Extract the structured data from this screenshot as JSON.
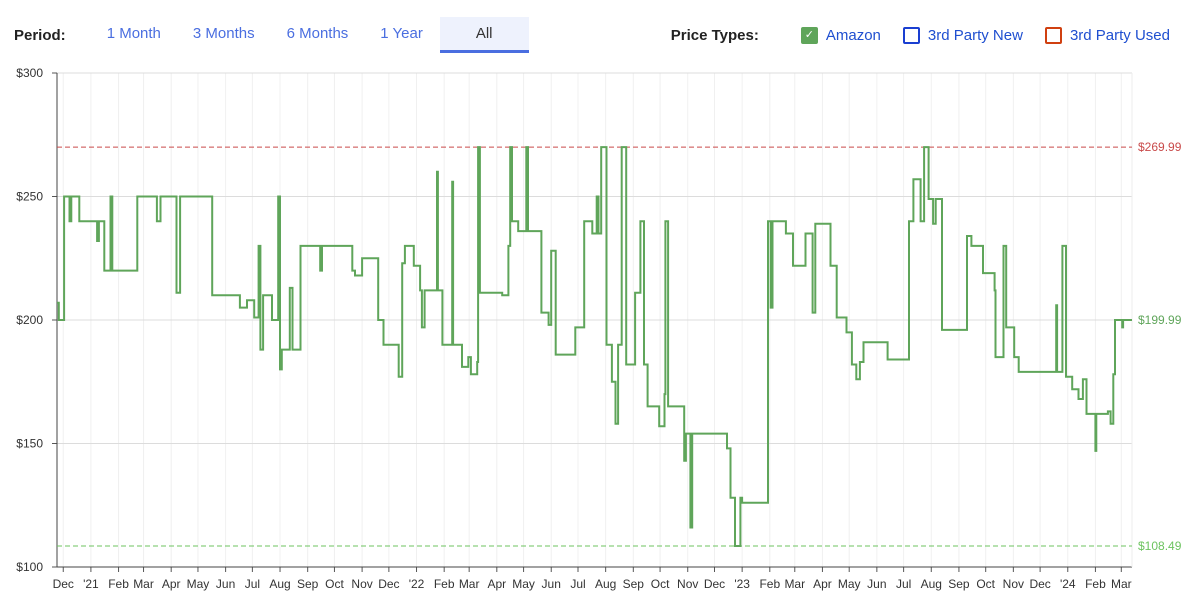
{
  "header": {
    "period_label": "Period:",
    "periods": [
      {
        "label": "1 Month",
        "active": false
      },
      {
        "label": "3 Months",
        "active": false
      },
      {
        "label": "6 Months",
        "active": false
      },
      {
        "label": "1 Year",
        "active": false
      },
      {
        "label": "All",
        "active": true
      }
    ],
    "price_types_label": "Price Types:",
    "price_types": [
      {
        "label": "Amazon",
        "checked": true,
        "color": "#5fa55a"
      },
      {
        "label": "3rd Party New",
        "checked": false,
        "color": "#1a3fd1"
      },
      {
        "label": "3rd Party Used",
        "checked": false,
        "color": "#d04010"
      }
    ]
  },
  "chart_data": {
    "type": "line",
    "step": true,
    "xrange": [
      "2020-11-24",
      "2024-03-13"
    ],
    "ylim": [
      100,
      300
    ],
    "y_ticks": [
      {
        "value": 300,
        "label": "$300"
      },
      {
        "value": 250,
        "label": "$250"
      },
      {
        "value": 200,
        "label": "$200"
      },
      {
        "value": 150,
        "label": "$150"
      },
      {
        "value": 100,
        "label": "$100"
      }
    ],
    "x_ticks": [
      {
        "date": "2020-12-01",
        "label": "Dec"
      },
      {
        "date": "2021-01-01",
        "label": "'21"
      },
      {
        "date": "2021-02-01",
        "label": "Feb"
      },
      {
        "date": "2021-03-01",
        "label": "Mar"
      },
      {
        "date": "2021-04-01",
        "label": "Apr"
      },
      {
        "date": "2021-05-01",
        "label": "May"
      },
      {
        "date": "2021-06-01",
        "label": "Jun"
      },
      {
        "date": "2021-07-01",
        "label": "Jul"
      },
      {
        "date": "2021-08-01",
        "label": "Aug"
      },
      {
        "date": "2021-09-01",
        "label": "Sep"
      },
      {
        "date": "2021-10-01",
        "label": "Oct"
      },
      {
        "date": "2021-11-01",
        "label": "Nov"
      },
      {
        "date": "2021-12-01",
        "label": "Dec"
      },
      {
        "date": "2022-01-01",
        "label": "'22"
      },
      {
        "date": "2022-02-01",
        "label": "Feb"
      },
      {
        "date": "2022-03-01",
        "label": "Mar"
      },
      {
        "date": "2022-04-01",
        "label": "Apr"
      },
      {
        "date": "2022-05-01",
        "label": "May"
      },
      {
        "date": "2022-06-01",
        "label": "Jun"
      },
      {
        "date": "2022-07-01",
        "label": "Jul"
      },
      {
        "date": "2022-08-01",
        "label": "Aug"
      },
      {
        "date": "2022-09-01",
        "label": "Sep"
      },
      {
        "date": "2022-10-01",
        "label": "Oct"
      },
      {
        "date": "2022-11-01",
        "label": "Nov"
      },
      {
        "date": "2022-12-01",
        "label": "Dec"
      },
      {
        "date": "2023-01-01",
        "label": "'23"
      },
      {
        "date": "2023-02-01",
        "label": "Feb"
      },
      {
        "date": "2023-03-01",
        "label": "Mar"
      },
      {
        "date": "2023-04-01",
        "label": "Apr"
      },
      {
        "date": "2023-05-01",
        "label": "May"
      },
      {
        "date": "2023-06-01",
        "label": "Jun"
      },
      {
        "date": "2023-07-01",
        "label": "Jul"
      },
      {
        "date": "2023-08-01",
        "label": "Aug"
      },
      {
        "date": "2023-09-01",
        "label": "Sep"
      },
      {
        "date": "2023-10-01",
        "label": "Oct"
      },
      {
        "date": "2023-11-01",
        "label": "Nov"
      },
      {
        "date": "2023-12-01",
        "label": "Dec"
      },
      {
        "date": "2024-01-01",
        "label": "'24"
      },
      {
        "date": "2024-02-01",
        "label": "Feb"
      },
      {
        "date": "2024-03-01",
        "label": "Mar"
      }
    ],
    "reference_lines": [
      {
        "value": 269.99,
        "label": "$269.99",
        "color": "#c94a4a"
      },
      {
        "value": 108.49,
        "label": "$108.49",
        "color": "#6cc35f"
      }
    ],
    "current_price": {
      "value": 199.99,
      "label": "$199.99",
      "color": "#5fa55a"
    },
    "series": [
      {
        "name": "Amazon",
        "color": "#5fa55a",
        "points": [
          [
            "2020-11-24",
            207
          ],
          [
            "2020-11-26",
            200
          ],
          [
            "2020-12-02",
            250
          ],
          [
            "2020-12-08",
            240
          ],
          [
            "2020-12-10",
            250
          ],
          [
            "2020-12-19",
            240
          ],
          [
            "2021-01-08",
            232
          ],
          [
            "2021-01-10",
            240
          ],
          [
            "2021-01-16",
            220
          ],
          [
            "2021-01-23",
            250
          ],
          [
            "2021-01-25",
            220
          ],
          [
            "2021-02-22",
            250
          ],
          [
            "2021-03-16",
            240
          ],
          [
            "2021-03-20",
            250
          ],
          [
            "2021-04-07",
            211
          ],
          [
            "2021-04-11",
            250
          ],
          [
            "2021-05-17",
            210
          ],
          [
            "2021-06-17",
            205
          ],
          [
            "2021-06-25",
            208
          ],
          [
            "2021-07-03",
            201
          ],
          [
            "2021-07-08",
            230
          ],
          [
            "2021-07-10",
            188
          ],
          [
            "2021-07-13",
            210
          ],
          [
            "2021-07-23",
            200
          ],
          [
            "2021-07-30",
            250
          ],
          [
            "2021-08-01",
            180
          ],
          [
            "2021-08-03",
            188
          ],
          [
            "2021-08-12",
            213
          ],
          [
            "2021-08-15",
            188
          ],
          [
            "2021-08-24",
            230
          ],
          [
            "2021-09-15",
            220
          ],
          [
            "2021-09-17",
            230
          ],
          [
            "2021-10-21",
            220
          ],
          [
            "2021-10-24",
            218
          ],
          [
            "2021-11-01",
            225
          ],
          [
            "2021-11-19",
            200
          ],
          [
            "2021-11-25",
            190
          ],
          [
            "2021-12-12",
            177
          ],
          [
            "2021-12-16",
            223
          ],
          [
            "2021-12-19",
            230
          ],
          [
            "2021-12-29",
            222
          ],
          [
            "2022-01-05",
            212
          ],
          [
            "2022-01-07",
            197
          ],
          [
            "2022-01-10",
            212
          ],
          [
            "2022-01-24",
            260
          ],
          [
            "2022-01-25",
            212
          ],
          [
            "2022-01-30",
            190
          ],
          [
            "2022-02-10",
            256
          ],
          [
            "2022-02-11",
            190
          ],
          [
            "2022-02-21",
            181
          ],
          [
            "2022-02-28",
            185
          ],
          [
            "2022-03-03",
            178
          ],
          [
            "2022-03-10",
            183
          ],
          [
            "2022-03-11",
            270
          ],
          [
            "2022-03-13",
            211
          ],
          [
            "2022-04-07",
            210
          ],
          [
            "2022-04-14",
            230
          ],
          [
            "2022-04-16",
            270
          ],
          [
            "2022-04-18",
            240
          ],
          [
            "2022-04-25",
            236
          ],
          [
            "2022-05-04",
            270
          ],
          [
            "2022-05-06",
            236
          ],
          [
            "2022-05-21",
            203
          ],
          [
            "2022-05-29",
            198
          ],
          [
            "2022-06-01",
            228
          ],
          [
            "2022-06-06",
            186
          ],
          [
            "2022-06-28",
            197
          ],
          [
            "2022-07-08",
            240
          ],
          [
            "2022-07-17",
            235
          ],
          [
            "2022-07-22",
            250
          ],
          [
            "2022-07-24",
            235
          ],
          [
            "2022-07-27",
            270
          ],
          [
            "2022-08-02",
            190
          ],
          [
            "2022-08-08",
            175
          ],
          [
            "2022-08-12",
            158
          ],
          [
            "2022-08-15",
            190
          ],
          [
            "2022-08-19",
            270
          ],
          [
            "2022-08-24",
            182
          ],
          [
            "2022-09-03",
            211
          ],
          [
            "2022-09-09",
            240
          ],
          [
            "2022-09-13",
            182
          ],
          [
            "2022-09-17",
            165
          ],
          [
            "2022-09-30",
            157
          ],
          [
            "2022-10-06",
            170
          ],
          [
            "2022-10-07",
            240
          ],
          [
            "2022-10-10",
            165
          ],
          [
            "2022-10-26",
            165
          ],
          [
            "2022-10-28",
            143
          ],
          [
            "2022-10-30",
            154
          ],
          [
            "2022-11-04",
            116
          ],
          [
            "2022-11-06",
            154
          ],
          [
            "2022-12-11",
            154
          ],
          [
            "2022-12-15",
            148
          ],
          [
            "2022-12-19",
            128
          ],
          [
            "2022-12-24",
            108.49
          ],
          [
            "2022-12-30",
            128
          ],
          [
            "2023-01-01",
            126
          ],
          [
            "2023-01-29",
            126
          ],
          [
            "2023-01-30",
            240
          ],
          [
            "2023-02-02",
            205
          ],
          [
            "2023-02-04",
            240
          ],
          [
            "2023-02-17",
            240
          ],
          [
            "2023-02-19",
            235
          ],
          [
            "2023-02-27",
            222
          ],
          [
            "2023-03-13",
            235
          ],
          [
            "2023-03-21",
            203
          ],
          [
            "2023-03-24",
            239
          ],
          [
            "2023-04-10",
            222
          ],
          [
            "2023-04-17",
            201
          ],
          [
            "2023-04-28",
            195
          ],
          [
            "2023-05-04",
            182
          ],
          [
            "2023-05-09",
            176
          ],
          [
            "2023-05-13",
            183
          ],
          [
            "2023-05-17",
            191
          ],
          [
            "2023-06-13",
            184
          ],
          [
            "2023-07-07",
            240
          ],
          [
            "2023-07-12",
            257
          ],
          [
            "2023-07-20",
            240
          ],
          [
            "2023-07-24",
            270
          ],
          [
            "2023-07-29",
            249
          ],
          [
            "2023-08-03",
            239
          ],
          [
            "2023-08-06",
            249
          ],
          [
            "2023-08-13",
            196
          ],
          [
            "2023-09-09",
            196
          ],
          [
            "2023-09-10",
            234
          ],
          [
            "2023-09-15",
            230
          ],
          [
            "2023-09-28",
            219
          ],
          [
            "2023-10-11",
            212
          ],
          [
            "2023-10-12",
            185
          ],
          [
            "2023-10-21",
            230
          ],
          [
            "2023-10-24",
            197
          ],
          [
            "2023-11-02",
            185
          ],
          [
            "2023-11-07",
            179
          ],
          [
            "2023-12-18",
            179
          ],
          [
            "2023-12-19",
            206
          ],
          [
            "2023-12-20",
            179
          ],
          [
            "2023-12-26",
            230
          ],
          [
            "2023-12-30",
            177
          ],
          [
            "2024-01-06",
            172
          ],
          [
            "2024-01-13",
            168
          ],
          [
            "2024-01-18",
            176
          ],
          [
            "2024-01-22",
            162
          ],
          [
            "2024-02-01",
            147
          ],
          [
            "2024-02-02",
            162
          ],
          [
            "2024-02-15",
            163
          ],
          [
            "2024-02-18",
            158
          ],
          [
            "2024-02-21",
            178
          ],
          [
            "2024-02-23",
            199.99
          ],
          [
            "2024-03-02",
            197
          ],
          [
            "2024-03-03",
            199.99
          ],
          [
            "2024-03-13",
            199.99
          ]
        ]
      }
    ]
  }
}
